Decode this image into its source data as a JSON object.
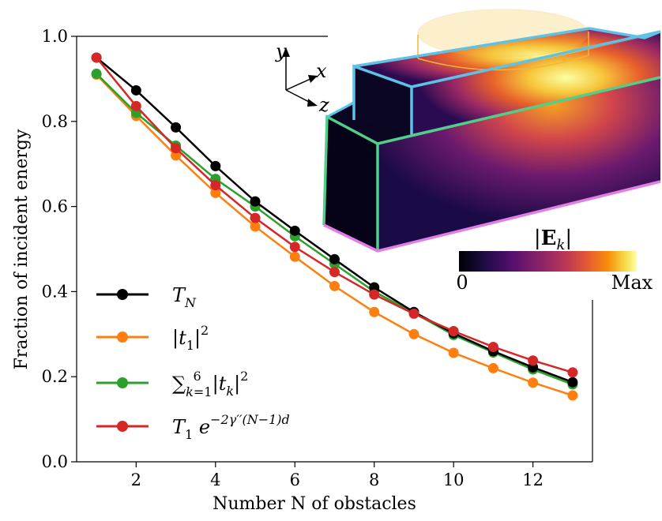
{
  "chart_data": {
    "type": "line",
    "xlabel": "Number N of obstacles",
    "ylabel": "Fraction of incident energy",
    "xlim": [
      0.5,
      13.5
    ],
    "ylim": [
      0.0,
      1.0
    ],
    "xticks": [
      2,
      4,
      6,
      8,
      10,
      12
    ],
    "yticks": [
      "0.0",
      "0.2",
      "0.4",
      "0.6",
      "0.8",
      "1.0"
    ],
    "grid": false,
    "legend_position": "lower-left",
    "x": [
      1,
      2,
      3,
      4,
      5,
      6,
      7,
      8,
      9,
      10,
      11,
      12,
      13
    ],
    "series": [
      {
        "name": "T_N",
        "color": "#000000",
        "values": [
          0.95,
          0.873,
          0.786,
          0.695,
          0.612,
          0.543,
          0.476,
          0.41,
          0.352,
          0.302,
          0.26,
          0.222,
          0.187
        ]
      },
      {
        "name": "|t_1|^2",
        "color": "#ff7f0e",
        "values": [
          0.91,
          0.813,
          0.72,
          0.632,
          0.553,
          0.482,
          0.413,
          0.352,
          0.3,
          0.256,
          0.22,
          0.186,
          0.156
        ]
      },
      {
        "name": "sum_{k=1}^{6} |t_k|^2",
        "color": "#2ca02c",
        "values": [
          0.912,
          0.82,
          0.743,
          0.665,
          0.6,
          0.53,
          0.465,
          0.4,
          0.35,
          0.298,
          0.257,
          0.217,
          0.182
        ]
      },
      {
        "name": "T_1 e^{-2γ''(N-1)d}",
        "color": "#d62728",
        "values": [
          0.95,
          0.836,
          0.737,
          0.65,
          0.573,
          0.505,
          0.446,
          0.393,
          0.348,
          0.307,
          0.27,
          0.238,
          0.21
        ]
      }
    ],
    "inset": {
      "axes_labels": [
        "y",
        "x",
        "z"
      ],
      "colorbar_label": "|E_k|",
      "colorbar_min": "0",
      "colorbar_max": "Max"
    }
  }
}
